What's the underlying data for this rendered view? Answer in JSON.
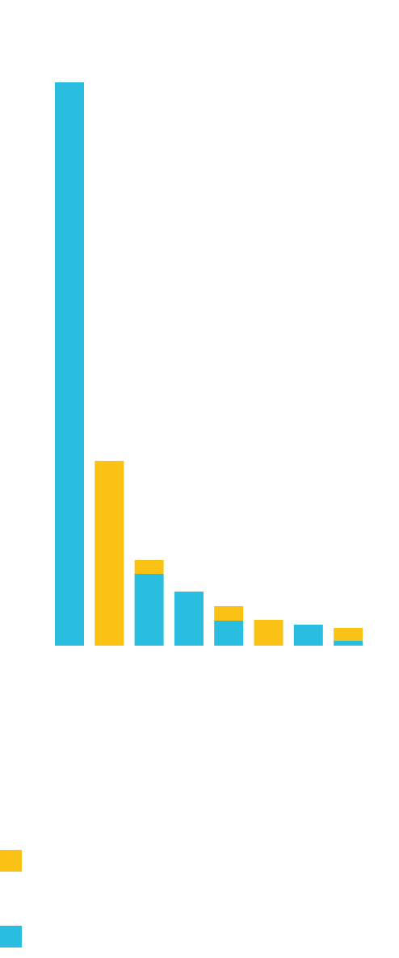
{
  "chart_data": {
    "type": "stacked_bar",
    "categories": [
      null,
      null,
      null,
      null,
      null,
      null,
      null,
      null
    ],
    "series": [
      {
        "color": "#29bde0",
        "values": [
          698,
          0,
          89,
          67,
          31,
          0,
          26,
          6
        ]
      },
      {
        "color": "#f9c215",
        "values": [
          0,
          229,
          17,
          0,
          18,
          32,
          0,
          16
        ]
      }
    ],
    "ylim": [
      0,
      698
    ],
    "legend": "bottom-left"
  }
}
